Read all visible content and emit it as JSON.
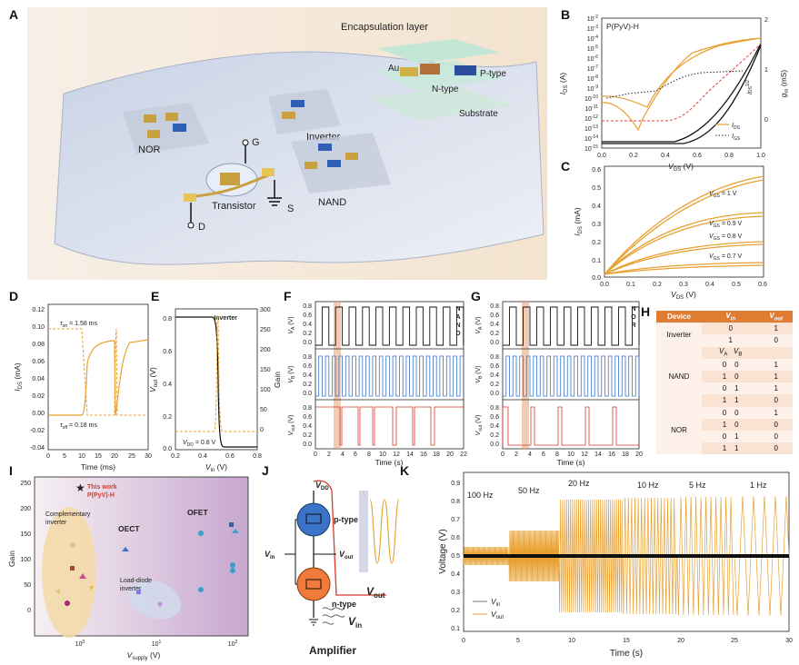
{
  "panels": [
    "A",
    "B",
    "C",
    "D",
    "E",
    "F",
    "G",
    "H",
    "I",
    "J",
    "K"
  ],
  "colors": {
    "orange": "#e8a030",
    "red": "#d83a2a",
    "blue": "#3a73c8",
    "black": "#111111",
    "gold": "#c8a040"
  },
  "panel_a": {
    "encapsulation": "Encapsulation layer",
    "au": "Au",
    "ntype": "N-type",
    "ptype": "P-type",
    "substrate": "Substrate",
    "nor": "NOR",
    "inverter": "Inverter",
    "nand": "NAND",
    "transistor": "Transistor",
    "g": "G",
    "s": "S",
    "d": "D"
  },
  "panel_b": {
    "material": "P(PyV)-H",
    "ylabel": "I",
    "ylabel_sub": "DS",
    "ylabel_unit": " (A)",
    "y2label": "g",
    "y2label_sub": "m",
    "y2label_unit": " (mS)",
    "y3label": "I",
    "y3label_sub": "DS",
    "y3label_sup": "1/2",
    "xlabel": "V",
    "xlabel_sub": "GS",
    "xlabel_unit": " (V)",
    "legend_ids": "I",
    "legend_ids_sub": "DS",
    "legend_igs": "I",
    "legend_igs_sub": "GS",
    "yticks": [
      "10",
      "10",
      "10",
      "10",
      "10",
      "10",
      "10",
      "10",
      "10",
      "10",
      "10",
      "10",
      "10",
      "10"
    ],
    "yexps": [
      "-2",
      "-3",
      "-4",
      "-5",
      "-6",
      "-7",
      "-8",
      "-9",
      "-10",
      "-11",
      "-12",
      "-13",
      "-14",
      "-15"
    ],
    "xticks": [
      "0.0",
      "0.2",
      "0.4",
      "0.6",
      "0.8",
      "1.0"
    ],
    "y2ticks": [
      "2",
      "1",
      "0"
    ]
  },
  "panel_c": {
    "ylabel": "I",
    "ylabel_sub": "DS",
    "ylabel_unit": " (mA)",
    "xlabel": "V",
    "xlabel_sub": "DS",
    "xlabel_unit": " (V)",
    "curves": [
      {
        "v": "V",
        "sub": "GS",
        "rest": " = 1 V"
      },
      {
        "v": "V",
        "sub": "GS",
        "rest": " = 0.9 V"
      },
      {
        "v": "V",
        "sub": "GS",
        "rest": " = 0.8 V"
      },
      {
        "v": "V",
        "sub": "GS",
        "rest": " = 0.7 V"
      }
    ],
    "yticks": [
      "0.6",
      "0.5",
      "0.4",
      "0.3",
      "0.2",
      "0.1",
      "0.0"
    ],
    "xticks": [
      "0.0",
      "0.1",
      "0.2",
      "0.3",
      "0.4",
      "0.5",
      "0.6"
    ]
  },
  "panel_d": {
    "ylabel": "I",
    "ylabel_sub": "DS",
    "ylabel_unit": " (mA)",
    "xlabel": "Time (ms)",
    "ton": "τ",
    "ton_sub": "on",
    "ton_val": " = 1.58 ms",
    "toff": "τ",
    "toff_sub": "off",
    "toff_val": " = 0.18 ms",
    "yticks": [
      "0.12",
      "0.10",
      "0.08",
      "0.06",
      "0.04",
      "0.02",
      "0.00",
      "-0.02",
      "-0.04"
    ],
    "xticks": [
      "0",
      "5",
      "10",
      "15",
      "20",
      "25",
      "30"
    ]
  },
  "panel_e": {
    "title": "Inverter",
    "ylabel": "V",
    "ylabel_sub": "out",
    "ylabel_unit": " (V)",
    "y2label": "Gain",
    "xlabel": "V",
    "xlabel_sub": "in",
    "xlabel_unit": " (V)",
    "vdd": "V",
    "vdd_sub": "DD",
    "vdd_val": " = 0.8 V",
    "yticks": [
      "0.8",
      "0.6",
      "0.4",
      "0.2",
      "0.0"
    ],
    "y2ticks": [
      "300",
      "250",
      "200",
      "150",
      "100",
      "50",
      "0"
    ],
    "xticks": [
      "0.2",
      "0.4",
      "0.6",
      "0.8"
    ]
  },
  "panel_f": {
    "side": [
      "N",
      "A",
      "N",
      "D"
    ],
    "xlabel": "Time (s)",
    "la": "V",
    "la_sub": "A",
    "lb": "V",
    "lb_sub": "B",
    "lo": "V",
    "lo_sub": "out",
    "unit": " (V)",
    "xticks": [
      "0",
      "2",
      "4",
      "6",
      "8",
      "10",
      "12",
      "14",
      "16",
      "18",
      "20",
      "22"
    ],
    "ticks3": [
      "0.8",
      "0.6",
      "0.4",
      "0.2",
      "0.0"
    ]
  },
  "panel_g": {
    "side": [
      "N",
      "O",
      "R"
    ],
    "xlabel": "Time (s)",
    "xticks": [
      "0",
      "2",
      "4",
      "6",
      "8",
      "10",
      "12",
      "14",
      "16",
      "18",
      "20"
    ]
  },
  "panel_h": {
    "head": [
      "Device",
      "V",
      "V"
    ],
    "head_subs": [
      "",
      "in",
      "out"
    ],
    "rows": [
      {
        "g": "Inverter",
        "c": [
          "0",
          "",
          "1"
        ]
      },
      {
        "g": "",
        "c": [
          "1",
          "",
          "0"
        ]
      },
      {
        "g": "",
        "c": [
          "V",
          "V",
          ""
        ],
        "subs": [
          "A",
          "B",
          ""
        ]
      },
      {
        "g": "",
        "c": [
          "0",
          "0",
          "1"
        ]
      },
      {
        "g": "NAND",
        "c": [
          "1",
          "0",
          "1"
        ]
      },
      {
        "g": "",
        "c": [
          "0",
          "1",
          "1"
        ]
      },
      {
        "g": "",
        "c": [
          "1",
          "1",
          "0"
        ]
      },
      {
        "g": "",
        "c": [
          "0",
          "0",
          "1"
        ]
      },
      {
        "g": "NOR",
        "c": [
          "1",
          "0",
          "0"
        ]
      },
      {
        "g": "",
        "c": [
          "0",
          "1",
          "0"
        ]
      },
      {
        "g": "",
        "c": [
          "1",
          "1",
          "0"
        ]
      }
    ]
  },
  "panel_i": {
    "this_work": "This work",
    "this_work2": "P(PyV)-H",
    "comp": "Complementary",
    "comp2": "inverter",
    "oect": "OECT",
    "ofet": "OFET",
    "load": "Load-diode",
    "load2": "inverter",
    "ylabel": "Gain",
    "xlabel": "V",
    "xlabel_sub": "supply",
    "xlabel_unit": " (V)",
    "yticks": [
      "250",
      "200",
      "150",
      "100",
      "50",
      "0"
    ],
    "xticks": [
      "10",
      "10",
      "10"
    ],
    "xexps": [
      "0",
      "1",
      "2"
    ]
  },
  "panel_j": {
    "vdd": "V",
    "vdd_sub": "DD",
    "ptype": "p-type",
    "ntype": "n-type",
    "vin": "V",
    "vin_sub": "in",
    "vout": "V",
    "vout_sub": "out",
    "title": "Amplifier"
  },
  "panel_k": {
    "ylabel": "Voltage (V)",
    "xlabel": "Time (s)",
    "freqs": [
      "100 Hz",
      "50 Hz",
      "20 Hz",
      "10 Hz",
      "5 Hz",
      "1 Hz"
    ],
    "leg_in": "V",
    "leg_in_sub": "in",
    "leg_out": "V",
    "leg_out_sub": "out",
    "yticks": [
      "0.9",
      "0.8",
      "0.7",
      "0.6",
      "0.5",
      "0.4",
      "0.3",
      "0.2",
      "0.1"
    ],
    "xticks": [
      "0",
      "5",
      "10",
      "15",
      "20",
      "25",
      "30"
    ]
  }
}
